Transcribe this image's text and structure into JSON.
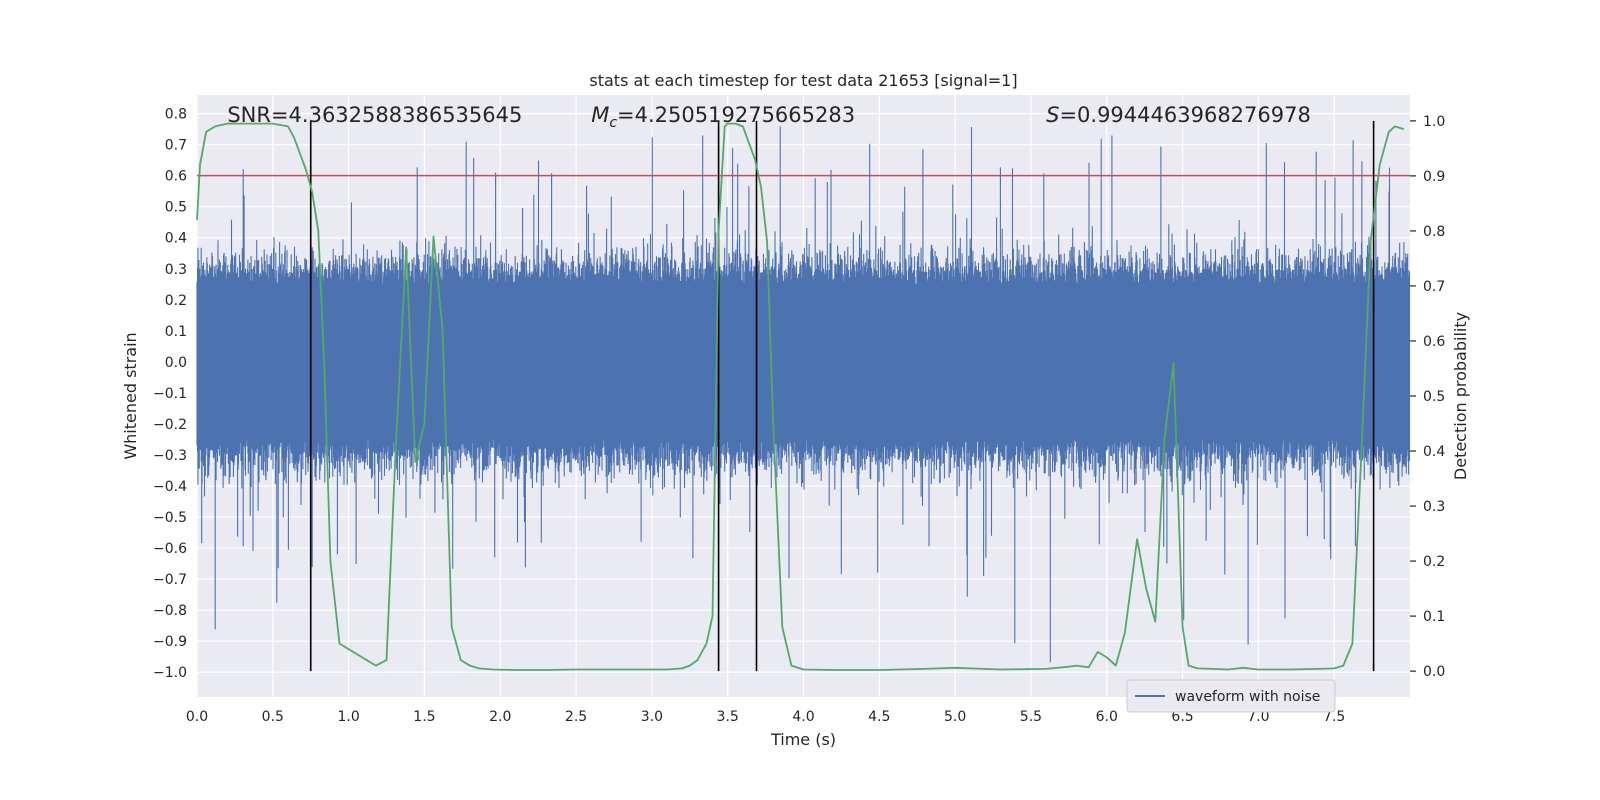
{
  "chart_data": {
    "type": "line",
    "title": "stats at each timestep for test data 21653 [signal=1]",
    "xlabel": "Time (s)",
    "ylabel_left": "Whitened strain",
    "ylabel_right": "Detection probability",
    "xlim": [
      0.0,
      8.0
    ],
    "ylim_left": [
      -1.08,
      0.86
    ],
    "ylim_right": [
      -0.047,
      1.047
    ],
    "x_ticks": [
      "0.0",
      "0.5",
      "1.0",
      "1.5",
      "2.0",
      "2.5",
      "3.0",
      "3.5",
      "4.0",
      "4.5",
      "5.0",
      "5.5",
      "6.0",
      "6.5",
      "7.0",
      "7.5"
    ],
    "y_ticks_left": [
      "0.8",
      "0.7",
      "0.6",
      "0.5",
      "0.4",
      "0.3",
      "0.2",
      "0.1",
      "0.0",
      "−0.1",
      "−0.2",
      "−0.3",
      "−0.4",
      "−0.5",
      "−0.6",
      "−0.7",
      "−0.8",
      "−0.9",
      "−1.0"
    ],
    "y_ticks_right": [
      "1.0",
      "0.9",
      "0.8",
      "0.7",
      "0.6",
      "0.5",
      "0.4",
      "0.3",
      "0.2",
      "0.1",
      "0.0"
    ],
    "grid": true,
    "threshold_strain": 0.6,
    "event_markers_x": [
      0.75,
      3.44,
      3.69,
      7.76
    ],
    "annotations": [
      {
        "label": "SNR",
        "value": "=4.3632588386535645",
        "x": 0.2
      },
      {
        "label": "M",
        "subscript": "c",
        "value": "=4.250519275665283",
        "x": 2.6
      },
      {
        "label": "S",
        "value": "=0.9944463968276978",
        "x": 5.6
      }
    ],
    "series": [
      {
        "name": "waveform with noise",
        "axis": "left",
        "color": "#4c72b0",
        "kind": "noise-band",
        "core_amplitude": 0.25,
        "spike_max": 0.76,
        "spike_min": -1.0
      },
      {
        "axis": "right",
        "color": "#55a868",
        "x": [
          0.0,
          0.02,
          0.06,
          0.12,
          0.2,
          0.3,
          0.4,
          0.5,
          0.6,
          0.64,
          0.68,
          0.72,
          0.76,
          0.8,
          0.84,
          0.88,
          0.94,
          1.0,
          1.06,
          1.12,
          1.18,
          1.25,
          1.31,
          1.38,
          1.44,
          1.5,
          1.56,
          1.62,
          1.68,
          1.74,
          1.8,
          1.86,
          1.95,
          2.1,
          2.3,
          2.5,
          2.7,
          2.9,
          3.1,
          3.2,
          3.25,
          3.3,
          3.36,
          3.4,
          3.44,
          3.48,
          3.5,
          3.55,
          3.6,
          3.64,
          3.68,
          3.72,
          3.76,
          3.8,
          3.86,
          3.92,
          4.0,
          4.2,
          4.5,
          4.8,
          5.0,
          5.3,
          5.6,
          5.75,
          5.8,
          5.88,
          5.94,
          6.0,
          6.06,
          6.12,
          6.2,
          6.26,
          6.32,
          6.38,
          6.44,
          6.5,
          6.54,
          6.6,
          6.7,
          6.8,
          6.9,
          7.0,
          7.2,
          7.4,
          7.5,
          7.56,
          7.62,
          7.68,
          7.74,
          7.8,
          7.86,
          7.9,
          7.96
        ],
        "values": [
          0.82,
          0.92,
          0.98,
          0.99,
          0.995,
          0.995,
          0.995,
          0.995,
          0.99,
          0.97,
          0.94,
          0.91,
          0.87,
          0.8,
          0.55,
          0.2,
          0.05,
          0.04,
          0.03,
          0.02,
          0.01,
          0.02,
          0.4,
          0.77,
          0.38,
          0.45,
          0.79,
          0.62,
          0.08,
          0.02,
          0.01,
          0.005,
          0.003,
          0.002,
          0.002,
          0.003,
          0.003,
          0.003,
          0.003,
          0.005,
          0.01,
          0.02,
          0.05,
          0.1,
          0.8,
          0.99,
          0.995,
          0.995,
          0.99,
          0.96,
          0.93,
          0.88,
          0.78,
          0.45,
          0.08,
          0.01,
          0.003,
          0.002,
          0.002,
          0.004,
          0.006,
          0.003,
          0.004,
          0.008,
          0.01,
          0.007,
          0.035,
          0.025,
          0.01,
          0.07,
          0.24,
          0.15,
          0.09,
          0.42,
          0.56,
          0.08,
          0.01,
          0.005,
          0.004,
          0.003,
          0.006,
          0.003,
          0.003,
          0.004,
          0.005,
          0.01,
          0.05,
          0.4,
          0.78,
          0.92,
          0.98,
          0.99,
          0.985
        ]
      }
    ],
    "threshold_color": "#c44e52",
    "marker_color": "#000000",
    "background_color": "#eaeaf2",
    "legend_position": "lower-right"
  }
}
